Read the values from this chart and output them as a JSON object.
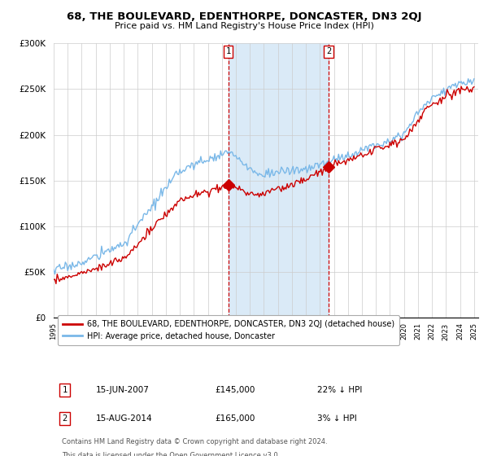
{
  "title": "68, THE BOULEVARD, EDENTHORPE, DONCASTER, DN3 2QJ",
  "subtitle": "Price paid vs. HM Land Registry's House Price Index (HPI)",
  "y_min": 0,
  "y_max": 300000,
  "y_ticks": [
    0,
    50000,
    100000,
    150000,
    200000,
    250000,
    300000
  ],
  "y_tick_labels": [
    "£0",
    "£50K",
    "£100K",
    "£150K",
    "£200K",
    "£250K",
    "£300K"
  ],
  "sale1_date": "15-JUN-2007",
  "sale1_price": 145000,
  "sale1_pct": "22% ↓ HPI",
  "sale2_date": "15-AUG-2014",
  "sale2_price": 165000,
  "sale2_pct": "3% ↓ HPI",
  "sale1_x": 2007.46,
  "sale2_x": 2014.62,
  "hpi_line_color": "#7ab8e8",
  "sale_line_color": "#cc0000",
  "sale_dot_color": "#cc0000",
  "shaded_region_color": "#daeaf7",
  "grid_color": "#cccccc",
  "background_color": "#ffffff",
  "legend_label1": "68, THE BOULEVARD, EDENTHORPE, DONCASTER, DN3 2QJ (detached house)",
  "legend_label2": "HPI: Average price, detached house, Doncaster",
  "footnote1": "Contains HM Land Registry data © Crown copyright and database right 2024.",
  "footnote2": "This data is licensed under the Open Government Licence v3.0."
}
